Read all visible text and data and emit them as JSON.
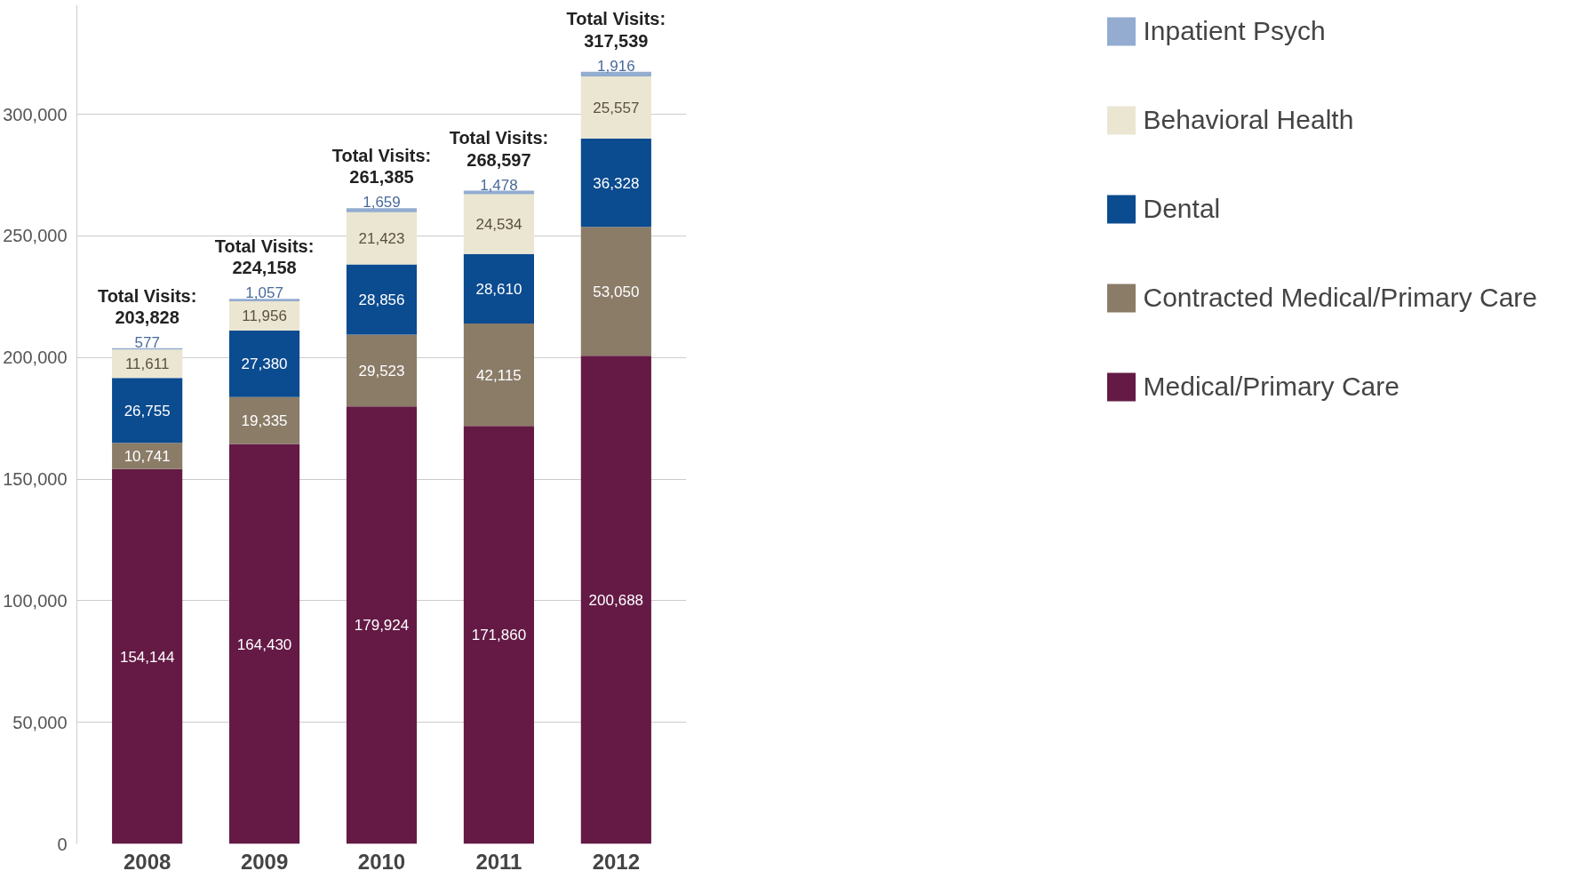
{
  "chart_data": {
    "type": "bar",
    "stacked": true,
    "categories": [
      "2008",
      "2009",
      "2010",
      "2011",
      "2012"
    ],
    "series": [
      {
        "name": "Medical/Primary Care",
        "color": "#641a45",
        "values": [
          154144,
          164430,
          179924,
          171860,
          200688
        ],
        "value_labels": [
          "154,144",
          "164,430",
          "179,924",
          "171,860",
          "200,688"
        ]
      },
      {
        "name": "Contracted Medical/Primary Care",
        "color": "#8b7c68",
        "values": [
          10741,
          19335,
          29523,
          42115,
          53050
        ],
        "value_labels": [
          "10,741",
          "19,335",
          "29,523",
          "42,115",
          "53,050"
        ]
      },
      {
        "name": "Dental",
        "color": "#0b4b8f",
        "values": [
          26755,
          27380,
          28856,
          28610,
          36328
        ],
        "value_labels": [
          "26,755",
          "27,380",
          "28,856",
          "28,610",
          "36,328"
        ]
      },
      {
        "name": "Behavioral Health",
        "color": "#ebe6d2",
        "values": [
          11611,
          11956,
          21423,
          24534,
          25557
        ],
        "value_labels": [
          "11,611",
          "11,956",
          "21,423",
          "24,534",
          "25,557"
        ]
      },
      {
        "name": "Inpatient Psych",
        "color": "#93acd0",
        "values": [
          577,
          1057,
          1659,
          1478,
          1916
        ],
        "value_labels": [
          "577",
          "1,057",
          "1,659",
          "1,478",
          "1,916"
        ]
      }
    ],
    "totals": [
      "Total Visits:\n203,828",
      "Total Visits:\n224,158",
      "Total Visits:\n261,385",
      "Total Visits:\n268,597",
      "Total Visits:\n317,539"
    ],
    "ylim": [
      0,
      345000
    ],
    "yticks": [
      0,
      {
        "value": 50000,
        "label": "50,000"
      },
      {
        "value": 100000,
        "label": "100,000"
      },
      {
        "value": 150000,
        "label": "150,000"
      },
      {
        "value": 200000,
        "label": "200,000"
      },
      {
        "value": 250000,
        "label": "250,000"
      },
      {
        "value": 300000,
        "label": "300,000"
      }
    ],
    "grid": "y",
    "legend": "right"
  }
}
